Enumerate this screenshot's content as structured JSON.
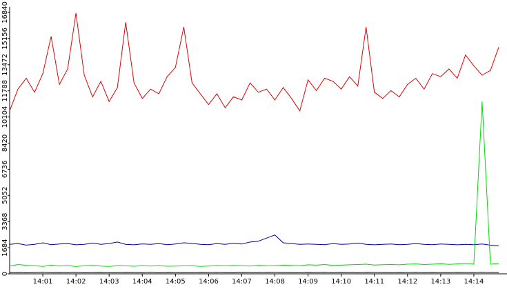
{
  "chart_data": {
    "type": "line",
    "x": [
      0,
      0.25,
      0.5,
      0.75,
      1,
      1.25,
      1.5,
      1.75,
      2,
      2.25,
      2.5,
      2.75,
      3,
      3.25,
      3.5,
      3.75,
      4,
      4.25,
      4.5,
      4.75,
      5,
      5.25,
      5.5,
      5.75,
      6,
      6.25,
      6.5,
      6.75,
      7,
      7.25,
      7.5,
      7.75,
      8,
      8.25,
      8.5,
      8.75,
      9,
      9.25,
      9.5,
      9.75,
      10,
      10.25,
      10.5,
      10.75,
      11,
      11.25,
      11.5,
      11.75,
      12,
      12.25,
      12.5,
      12.75,
      13,
      13.25,
      13.5,
      13.75,
      14,
      14.25,
      14.5,
      14.75
    ],
    "series": [
      {
        "color": "#e00000",
        "values": [
          10500,
          11900,
          12600,
          11700,
          12900,
          15300,
          12200,
          13200,
          16800,
          12800,
          11400,
          12400,
          11100,
          12000,
          16200,
          12300,
          11300,
          11900,
          11600,
          12700,
          13300,
          15900,
          12300,
          11600,
          10900,
          11600,
          10700,
          11400,
          11200,
          12300,
          11700,
          11900,
          11200,
          12000,
          11300,
          10500,
          12500,
          11800,
          12600,
          12400,
          11900,
          12700,
          12100,
          15900,
          11700,
          11300,
          11800,
          11400,
          12200,
          12600,
          11900,
          12900,
          12700,
          13200,
          12600,
          14100,
          13400,
          12800,
          13100,
          14600
        ]
      },
      {
        "color": "#00009a",
        "values": [
          1900,
          1950,
          1850,
          1900,
          2000,
          1880,
          1920,
          1950,
          1870,
          1900,
          1980,
          1900,
          1950,
          2050,
          1900,
          1870,
          1930,
          1900,
          1950,
          1880,
          1920,
          2000,
          1960,
          1900,
          1880,
          1950,
          1900,
          1970,
          1920,
          2050,
          2100,
          2300,
          2500,
          2000,
          1950,
          1900,
          1920,
          1900,
          1880,
          1950,
          1900,
          1920,
          1980,
          1900,
          1870,
          1900,
          1920,
          1880,
          1900,
          1950,
          1900,
          1880,
          1920,
          1900,
          1870,
          1900,
          1880,
          1920,
          1850,
          1800
        ]
      },
      {
        "color": "#00dd00",
        "values": [
          500,
          600,
          550,
          520,
          480,
          560,
          500,
          530,
          470,
          520,
          540,
          500,
          480,
          520,
          510,
          490,
          530,
          500,
          520,
          490,
          500,
          510,
          520,
          480,
          500,
          530,
          510,
          540,
          520,
          500,
          550,
          530,
          520,
          560,
          540,
          520,
          580,
          560,
          600,
          540,
          560,
          580,
          600,
          620,
          570,
          590,
          600,
          580,
          620,
          640,
          600,
          620,
          650,
          610,
          640,
          680,
          620,
          11100,
          620,
          660
        ]
      },
      {
        "color": "#000000",
        "values": [
          80,
          90,
          70,
          85,
          100,
          75,
          90,
          80,
          95,
          70,
          85,
          90,
          80,
          75,
          90,
          85,
          80,
          95,
          70,
          90,
          85,
          80,
          75,
          90,
          85,
          95,
          80,
          70,
          90,
          85,
          80,
          95,
          90,
          85,
          80,
          75,
          90,
          85,
          95,
          80,
          90,
          85,
          80,
          95,
          90,
          85,
          80,
          90,
          85,
          95,
          80,
          90,
          85,
          80,
          95,
          90,
          85,
          100,
          90,
          85
        ]
      }
    ],
    "xlim": [
      0,
      15
    ],
    "xticks": [
      {
        "value": 1,
        "label": "14:01"
      },
      {
        "value": 2,
        "label": "14:02"
      },
      {
        "value": 3,
        "label": "14:03"
      },
      {
        "value": 4,
        "label": "14:04"
      },
      {
        "value": 5,
        "label": "14:05"
      },
      {
        "value": 6,
        "label": "14:06"
      },
      {
        "value": 7,
        "label": "14:07"
      },
      {
        "value": 8,
        "label": "14:08"
      },
      {
        "value": 9,
        "label": "14:09"
      },
      {
        "value": 10,
        "label": "14:10"
      },
      {
        "value": 11,
        "label": "14:11"
      },
      {
        "value": 12,
        "label": "14:12"
      },
      {
        "value": 13,
        "label": "14:13"
      },
      {
        "value": 14,
        "label": "14:14"
      }
    ],
    "ylim": [
      0,
      16840
    ],
    "yticks": [
      0,
      1684,
      3368,
      5052,
      6736,
      8420,
      10104,
      11788,
      13472,
      15156,
      16840
    ],
    "grid": false
  }
}
